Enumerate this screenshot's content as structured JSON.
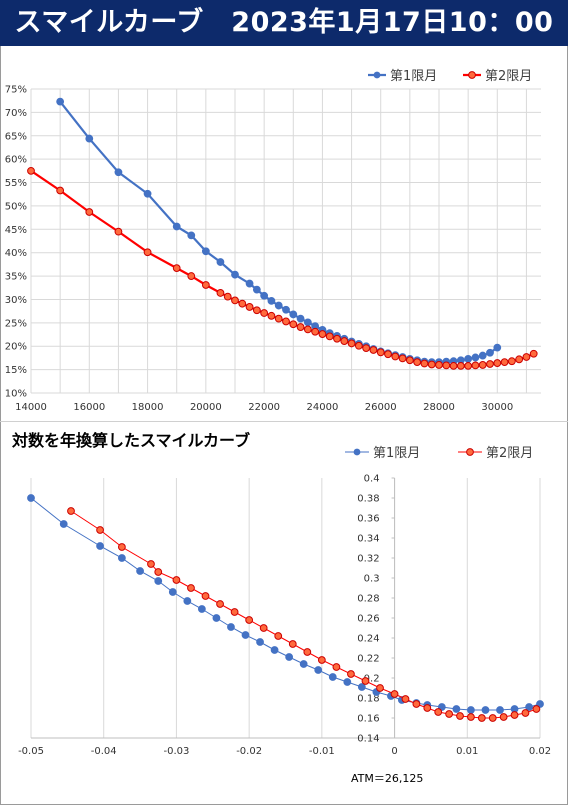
{
  "header": {
    "title": "スマイルカーブ　2023年1月17日10：00"
  },
  "chart_data": [
    {
      "type": "line",
      "title": "",
      "xlabel": "",
      "ylabel": "",
      "xlim": [
        14000,
        31500
      ],
      "ylim": [
        0.1,
        0.75
      ],
      "x_ticks": [
        "14000",
        "16000",
        "18000",
        "20000",
        "22000",
        "24000",
        "26000",
        "28000",
        "30000"
      ],
      "y_ticks": [
        "10%",
        "15%",
        "20%",
        "25%",
        "30%",
        "35%",
        "40%",
        "45%",
        "50%",
        "55%",
        "60%",
        "65%",
        "70%",
        "75%"
      ],
      "legend": [
        "第1限月",
        "第2限月"
      ],
      "series": [
        {
          "name": "第1限月",
          "color": "#4472c4",
          "x": [
            15000,
            16000,
            17000,
            18000,
            19000,
            19500,
            20000,
            20500,
            21000,
            21500,
            21750,
            22000,
            22250,
            22500,
            22750,
            23000,
            23250,
            23500,
            23750,
            24000,
            24250,
            24500,
            24750,
            25000,
            25250,
            25500,
            25750,
            26000,
            26250,
            26500,
            26750,
            27000,
            27250,
            27500,
            27750,
            28000,
            28250,
            28500,
            28750,
            29000,
            29250,
            29500,
            29750,
            30000
          ],
          "y": [
            0.723,
            0.644,
            0.572,
            0.526,
            0.456,
            0.437,
            0.403,
            0.38,
            0.353,
            0.334,
            0.321,
            0.308,
            0.297,
            0.287,
            0.278,
            0.268,
            0.259,
            0.251,
            0.243,
            0.235,
            0.228,
            0.222,
            0.216,
            0.21,
            0.205,
            0.2,
            0.194,
            0.189,
            0.185,
            0.181,
            0.177,
            0.173,
            0.17,
            0.167,
            0.166,
            0.166,
            0.167,
            0.168,
            0.17,
            0.173,
            0.176,
            0.18,
            0.186,
            0.197
          ]
        },
        {
          "name": "第2限月",
          "color": "#ff0000",
          "x": [
            14000,
            15000,
            16000,
            17000,
            18000,
            19000,
            19500,
            20000,
            20500,
            20750,
            21000,
            21250,
            21500,
            21750,
            22000,
            22250,
            22500,
            22750,
            23000,
            23250,
            23500,
            23750,
            24000,
            24250,
            24500,
            24750,
            25000,
            25250,
            25500,
            25750,
            26000,
            26250,
            26500,
            26750,
            27000,
            27250,
            27500,
            27750,
            28000,
            28250,
            28500,
            28750,
            29000,
            29250,
            29500,
            29750,
            30000,
            30250,
            30500,
            30750,
            31000,
            31250
          ],
          "y": [
            0.575,
            0.533,
            0.487,
            0.445,
            0.401,
            0.367,
            0.35,
            0.331,
            0.314,
            0.306,
            0.298,
            0.291,
            0.284,
            0.277,
            0.271,
            0.265,
            0.259,
            0.253,
            0.247,
            0.241,
            0.236,
            0.231,
            0.226,
            0.221,
            0.216,
            0.211,
            0.206,
            0.201,
            0.196,
            0.192,
            0.187,
            0.183,
            0.178,
            0.174,
            0.17,
            0.166,
            0.163,
            0.161,
            0.16,
            0.159,
            0.158,
            0.158,
            0.158,
            0.159,
            0.16,
            0.162,
            0.164,
            0.166,
            0.168,
            0.172,
            0.177,
            0.184
          ]
        }
      ]
    },
    {
      "type": "scatter",
      "title": "対数を年換算したスマイルカーブ",
      "xlabel": "",
      "ylabel": "",
      "xlim": [
        -0.05,
        0.02
      ],
      "ylim": [
        0.14,
        0.4
      ],
      "x_ticks": [
        "-0.05",
        "-0.04",
        "-0.03",
        "-0.02",
        "-0.01",
        "0",
        "0.01",
        "0.02"
      ],
      "y_ticks": [
        "0.14",
        "0.16",
        "0.18",
        "0.2",
        "0.22",
        "0.24",
        "0.26",
        "0.28",
        "0.3",
        "0.32",
        "0.34",
        "0.36",
        "0.38",
        "0.4"
      ],
      "legend": [
        "第1限月",
        "第2限月"
      ],
      "annotation": "ATM＝26,125",
      "series": [
        {
          "name": "第1限月",
          "color": "#4472c4",
          "x": [
            -0.05,
            -0.0455,
            -0.0405,
            -0.0375,
            -0.035,
            -0.0325,
            -0.0305,
            -0.0285,
            -0.0265,
            -0.0245,
            -0.0225,
            -0.0205,
            -0.0185,
            -0.0165,
            -0.0145,
            -0.0125,
            -0.0105,
            -0.0085,
            -0.0065,
            -0.0045,
            -0.0025,
            -0.0005,
            0.001,
            0.003,
            0.0045,
            0.0065,
            0.0085,
            0.0105,
            0.0125,
            0.0145,
            0.0165,
            0.0185,
            0.02
          ],
          "y": [
            0.38,
            0.354,
            0.332,
            0.32,
            0.307,
            0.297,
            0.286,
            0.277,
            0.269,
            0.26,
            0.251,
            0.243,
            0.236,
            0.228,
            0.221,
            0.214,
            0.208,
            0.201,
            0.196,
            0.191,
            0.186,
            0.182,
            0.178,
            0.175,
            0.173,
            0.171,
            0.169,
            0.168,
            0.168,
            0.168,
            0.169,
            0.171,
            0.174
          ]
        },
        {
          "name": "第2限月",
          "color": "#ff0000",
          "x": [
            -0.0445,
            -0.0405,
            -0.0375,
            -0.0335,
            -0.0325,
            -0.03,
            -0.028,
            -0.026,
            -0.024,
            -0.022,
            -0.02,
            -0.018,
            -0.016,
            -0.014,
            -0.012,
            -0.01,
            -0.008,
            -0.006,
            -0.004,
            -0.002,
            0.0,
            0.0015,
            0.003,
            0.0045,
            0.006,
            0.0075,
            0.009,
            0.0105,
            0.012,
            0.0135,
            0.015,
            0.0165,
            0.018,
            0.0195
          ],
          "y": [
            0.367,
            0.348,
            0.331,
            0.314,
            0.306,
            0.298,
            0.29,
            0.282,
            0.274,
            0.266,
            0.258,
            0.25,
            0.242,
            0.234,
            0.226,
            0.218,
            0.211,
            0.204,
            0.197,
            0.19,
            0.184,
            0.179,
            0.174,
            0.17,
            0.166,
            0.164,
            0.162,
            0.161,
            0.16,
            0.16,
            0.161,
            0.163,
            0.165,
            0.169
          ]
        }
      ]
    }
  ]
}
